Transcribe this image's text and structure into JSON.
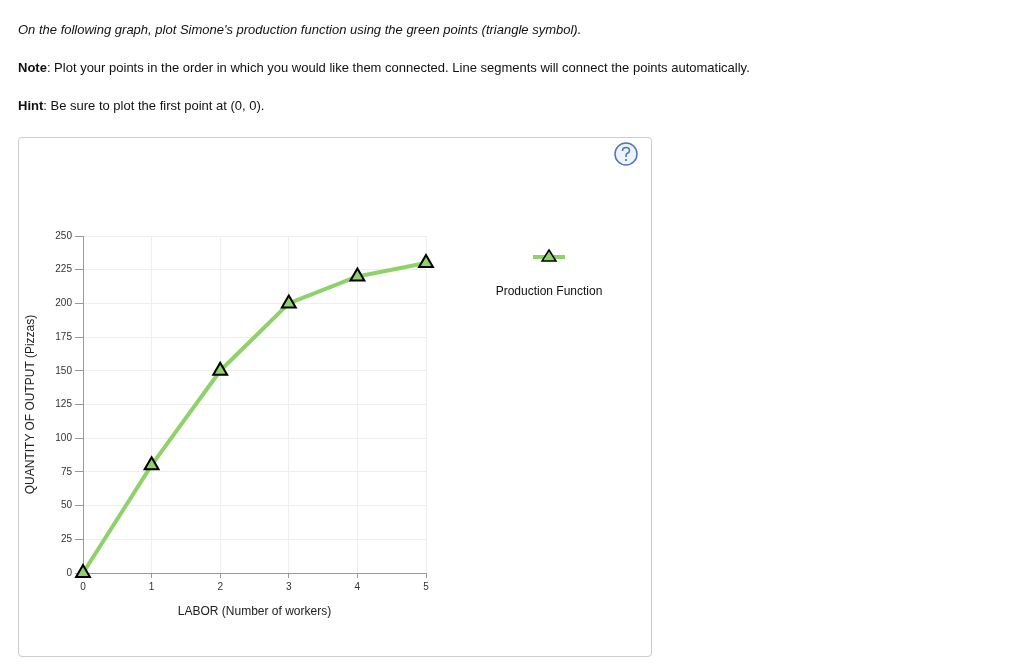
{
  "chart_data": {
    "type": "line",
    "title": "On the following graph, plot Simone's production function using the green points (triangle symbol).",
    "annotations": [
      "Note: Plot your points in the order in which you would like them connected. Line segments will connect the points automatically.",
      "Hint: Be sure to plot the first point at (0, 0)."
    ],
    "xlabel": "LABOR (Number of workers)",
    "ylabel": "QUANTITY OF OUTPUT (Pizzas)",
    "x": [
      0,
      1,
      2,
      3,
      4,
      5
    ],
    "series": [
      {
        "name": "Production Function",
        "color": "#8fd16a",
        "values": [
          0,
          80,
          150,
          200,
          220,
          230
        ]
      }
    ],
    "xlim": [
      0,
      5
    ],
    "xticks": [
      0,
      1,
      2,
      3,
      4,
      5
    ],
    "ylim": [
      0,
      250
    ],
    "yticks": [
      0,
      25,
      50,
      75,
      100,
      125,
      150,
      175,
      200,
      225,
      250
    ],
    "grid": true,
    "legend": "right",
    "marker": "triangle",
    "line_style": "solid"
  }
}
